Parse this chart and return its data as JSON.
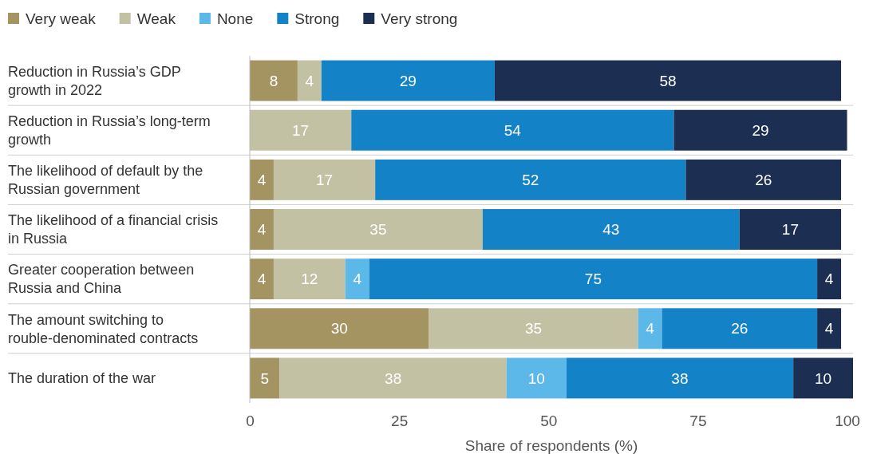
{
  "chart_data": {
    "type": "bar",
    "orientation": "horizontal",
    "stacked": true,
    "data_labels": true,
    "legend": "top left",
    "grid": false,
    "xlabel": "Share of respondents (%)",
    "xlim": [
      0,
      101
    ],
    "xticks": [
      0,
      25,
      50,
      75,
      100
    ],
    "categories": [
      "Reduction in Russia’s GDP growth in 2022",
      "Reduction in Russia’s long-term growth",
      "The likelihood of default by the Russian government",
      "The likelihood of a financial crisis in Russia",
      "Greater cooperation between Russia and China",
      "The amount switching to rouble-denominated contracts",
      "The duration of the war"
    ],
    "series": [
      {
        "name": "Very weak",
        "color": "#a39461",
        "values": [
          8,
          null,
          4,
          4,
          4,
          30,
          5
        ]
      },
      {
        "name": "Weak",
        "color": "#c2c1a3",
        "values": [
          4,
          17,
          17,
          35,
          12,
          35,
          38
        ]
      },
      {
        "name": "None",
        "color": "#5cb8e8",
        "values": [
          null,
          null,
          null,
          null,
          4,
          4,
          10
        ]
      },
      {
        "name": "Strong",
        "color": "#1482c6",
        "values": [
          29,
          54,
          52,
          43,
          75,
          26,
          38
        ]
      },
      {
        "name": "Very strong",
        "color": "#1c2f52",
        "values": [
          58,
          29,
          26,
          17,
          4,
          4,
          10
        ]
      }
    ]
  }
}
